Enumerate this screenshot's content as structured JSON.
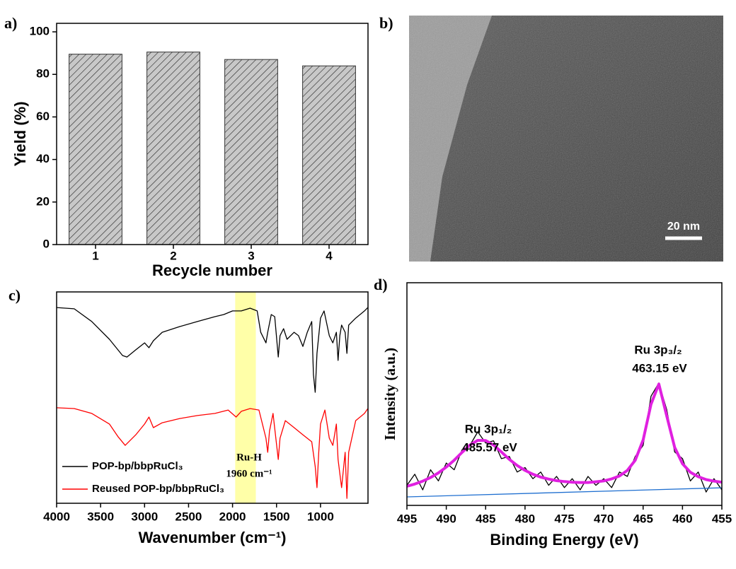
{
  "chart_data": [
    {
      "type": "bar",
      "panel_label": "a)",
      "categories": [
        "1",
        "2",
        "3",
        "4"
      ],
      "values": [
        89.5,
        90.5,
        87,
        84
      ],
      "color": "#c8c8c8",
      "hatch": true,
      "ylim": [
        0,
        104
      ],
      "yticks": [
        0,
        20,
        40,
        60,
        80,
        100
      ],
      "xlabel": "Recycle number",
      "ylabel": "Yield (%)"
    },
    {
      "type": "image",
      "panel_label": "b)",
      "scale_bar": "20 nm"
    },
    {
      "type": "line",
      "panel_label": "c)",
      "xlim": [
        4000,
        460
      ],
      "xticks": [
        4000,
        3500,
        3000,
        2500,
        2000,
        1500,
        1000
      ],
      "ylim": [
        0,
        100
      ],
      "xlabel": "Wavenumber (cm⁻¹)",
      "highlight": {
        "x": [
          1970,
          1735
        ],
        "color": "#ffff99"
      },
      "annotations": [
        "Ru-H",
        "1960 cm⁻¹"
      ],
      "legend": "lower left",
      "series": [
        {
          "name": "POP-bp/bbpRuCl₃",
          "color": "#000000",
          "x": [
            4000,
            3800,
            3600,
            3400,
            3250,
            3200,
            3100,
            3000,
            2950,
            2900,
            2800,
            2600,
            2400,
            2200,
            2100,
            2000,
            1900,
            1800,
            1720,
            1680,
            1620,
            1600,
            1560,
            1520,
            1480,
            1460,
            1420,
            1380,
            1300,
            1250,
            1200,
            1150,
            1100,
            1080,
            1060,
            1040,
            1000,
            960,
            900,
            860,
            820,
            800,
            780,
            760,
            720,
            700,
            680,
            600,
            500,
            462
          ],
          "values": [
            92.6,
            92,
            86,
            77.6,
            69.9,
            69.2,
            72.6,
            75.9,
            73.6,
            76.9,
            80.9,
            83.6,
            86,
            88.3,
            89.3,
            91,
            91,
            92.3,
            91,
            80.9,
            75.9,
            80.9,
            89.3,
            88.3,
            69.2,
            79.3,
            82.6,
            77.6,
            80.9,
            79.3,
            74.2,
            80.9,
            86,
            60.9,
            52.5,
            70.9,
            87.6,
            91,
            79.3,
            75.9,
            80.9,
            67.6,
            79.3,
            84.3,
            80.9,
            70.9,
            84.3,
            87.6,
            91,
            92.6
          ]
        },
        {
          "name": "Reused POP-bp/bbpRuCl₃",
          "color": "#ff0000",
          "x": [
            4000,
            3800,
            3600,
            3400,
            3300,
            3220,
            3100,
            3000,
            2950,
            2900,
            2800,
            2600,
            2400,
            2200,
            2050,
            1960,
            1900,
            1800,
            1700,
            1620,
            1600,
            1580,
            1540,
            1480,
            1460,
            1400,
            1300,
            1200,
            1100,
            1060,
            1040,
            1020,
            1000,
            950,
            900,
            860,
            820,
            800,
            760,
            720,
            700,
            680,
            600,
            500,
            462
          ],
          "values": [
            45.2,
            44.8,
            42.5,
            37.5,
            31.4,
            27.4,
            32.4,
            37.5,
            40.8,
            35.8,
            38.1,
            40.1,
            41.5,
            42.5,
            44.1,
            40.8,
            43.5,
            44.8,
            44.1,
            30.8,
            24.1,
            34.1,
            42.5,
            20.7,
            30.8,
            39.1,
            35.8,
            32.4,
            29.1,
            17.4,
            7.4,
            24.1,
            37.5,
            44.1,
            30.8,
            27.4,
            37.5,
            20.7,
            7.4,
            24.1,
            2.3,
            24.1,
            39.1,
            42.5,
            44.8
          ]
        }
      ]
    },
    {
      "type": "line",
      "panel_label": "d)",
      "xlim": [
        495,
        455
      ],
      "xticks": [
        495,
        490,
        485,
        480,
        475,
        470,
        465,
        460,
        455
      ],
      "ylim": [
        0,
        100
      ],
      "xlabel": "Binding Energy (eV)",
      "ylabel": "Intensity (a.u.)",
      "annotations": [
        "Ru 3p₁/₂",
        "485.57 eV",
        "Ru 3p₃/₂",
        "463.15 eV"
      ],
      "series": [
        {
          "color": "#000000",
          "x": [
            495,
            494,
            493,
            492,
            491,
            490,
            489,
            488,
            487,
            486,
            485,
            484,
            483,
            482,
            481,
            480,
            479,
            478,
            477,
            476,
            475,
            474,
            473,
            472,
            471,
            470,
            469,
            468,
            467,
            466,
            465,
            464,
            463,
            462,
            461,
            460,
            459,
            458,
            457,
            456,
            455
          ],
          "values": [
            9,
            14,
            7,
            16,
            11,
            19,
            16,
            25,
            27,
            33,
            28,
            29,
            21,
            22,
            15,
            17,
            12,
            15,
            9,
            13,
            8,
            12,
            7,
            13,
            9,
            12,
            8,
            15,
            13,
            22,
            27,
            49,
            55,
            43,
            24,
            21,
            11,
            15,
            6,
            12,
            7
          ]
        },
        {
          "color": "#e020e0",
          "x": [
            495,
            494,
            493,
            492,
            491,
            490,
            489,
            488,
            487,
            486,
            485,
            484,
            483,
            482,
            481,
            480,
            479,
            478,
            477,
            476,
            475,
            474,
            473,
            472,
            471,
            470,
            469,
            468,
            467,
            466,
            465,
            464,
            463,
            462,
            461,
            460,
            459,
            458,
            457,
            456,
            455
          ],
          "values": [
            8.6,
            9.6,
            10.9,
            12.5,
            14.6,
            17.2,
            20.3,
            23.8,
            27.1,
            29.2,
            29.1,
            27.1,
            24.0,
            20.7,
            17.9,
            15.7,
            14.0,
            12.7,
            11.8,
            11.1,
            10.7,
            10.4,
            10.3,
            10.3,
            10.6,
            11.0,
            11.9,
            13.2,
            15.7,
            20.3,
            29.4,
            45.4,
            54.5,
            40.2,
            26.1,
            18.7,
            14.9,
            12.9,
            11.6,
            10.9,
            10.4
          ]
        },
        {
          "color": "#1f6fd0",
          "x": [
            495,
            455
          ],
          "values": [
            3.8,
            7.9
          ]
        }
      ]
    }
  ]
}
